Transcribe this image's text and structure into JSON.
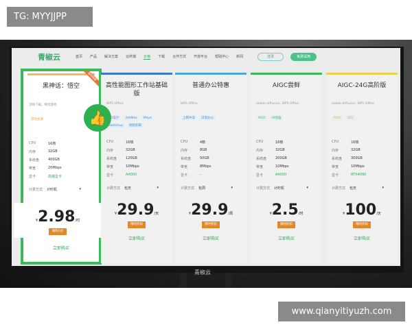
{
  "overlay": {
    "tg": "TG: MYYJJPP",
    "watermark": "www.qianyitiyuzh.com"
  },
  "nav": {
    "logo": "青椒云",
    "items": [
      "首页",
      "产品",
      "解决方案",
      "云终端",
      "价格",
      "下载",
      "合作方式",
      "开放平台",
      "帮助中心",
      "新闻"
    ],
    "active": 4,
    "login": "登录",
    "free_trial": "免费试用"
  },
  "monitor_brand": "青椒云",
  "spec_labels": [
    "CPU",
    "内存",
    "系统盘",
    "带宽",
    "显卡"
  ],
  "billing_label": "计费方式",
  "buy_label": "立即购买",
  "colors": {
    "accent": "#3cb95a",
    "orange": "#e0882a"
  },
  "cards": [
    {
      "title": "黑神话：悟空",
      "sub": "流畅下载，畅玩游戏",
      "tags": [
        "游戏加速"
      ],
      "tag_color": "#e8a93a",
      "bar": "#e8c14a",
      "specs": [
        "16核",
        "32GB",
        "400GB",
        "20Mbps",
        "高端显卡"
      ],
      "billing": "计时机",
      "currency": "¥",
      "price": "2.98",
      "unit": "/时",
      "promo": "限购1台",
      "badge": "限时特惠",
      "hot": true
    },
    {
      "title": "高性能图形工作站基础版",
      "sub": "WPS Office",
      "tags": [
        "3D设计",
        "3dsMax",
        "Maya",
        "Sketchup",
        "视频剪辑"
      ],
      "tag_color": "#4a90d9",
      "bar": "#3a78c8",
      "specs": [
        "16核",
        "32GB",
        "120GB",
        "10Mbps",
        "A4000"
      ],
      "billing": "包天",
      "currency": "¥",
      "price": "29.9",
      "unit": "/天",
      "promo": "限时折扣"
    },
    {
      "title": "普通办公特惠",
      "sub": "WPS Office",
      "tags": [
        "上网冲浪",
        "日常办公"
      ],
      "tag_color": "#4a90d9",
      "bar": "#4aa8d8",
      "specs": [
        "4核",
        "8GB",
        "50GB",
        "8Mbps",
        "--"
      ],
      "billing": "包周",
      "currency": "¥",
      "price": "29.9",
      "unit": "/周",
      "promo": "限时折扣"
    },
    {
      "title": "AIGC尝鲜",
      "sub": "stable-diffusion, WPS Office",
      "tags": [
        "AIGC",
        "AI绘画"
      ],
      "tag_color": "#3cb95a",
      "bar": "#3cb95a",
      "specs": [
        "16核",
        "32GB",
        "200GB",
        "10Mbps",
        "A4000"
      ],
      "billing": "计时机",
      "currency": "¥",
      "price": "2.5",
      "unit": "/时",
      "promo": "限时折扣"
    },
    {
      "title": "AIGC-24G高阶版",
      "sub": "stable-diffusion, WPS Office",
      "tags": [
        "AIGC",
        "高阶"
      ],
      "tag_color": "#e8b93a",
      "bar": "#e8d24a",
      "specs": [
        "16核",
        "32GB",
        "300GB",
        "10Mbps",
        "RTX4090"
      ],
      "billing": "包天",
      "currency": "¥",
      "price": "100",
      "unit": "/天",
      "promo": "限时折扣"
    }
  ]
}
